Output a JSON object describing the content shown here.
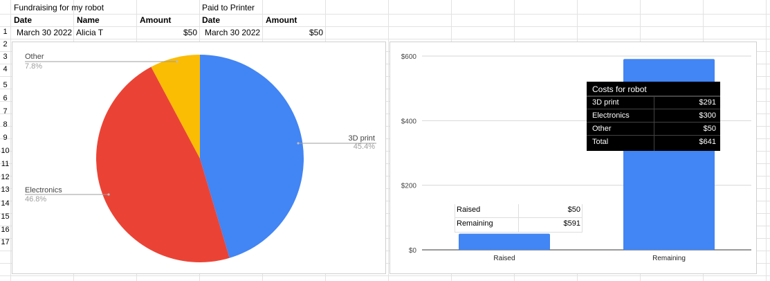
{
  "sheet": {
    "title_left": "Fundraising for my robot",
    "title_right": "Paid to Printer",
    "headers": [
      "Date",
      "Name",
      "Amount",
      "Date",
      "Amount"
    ],
    "row1": [
      "March 30 2022",
      "Alicia T",
      "$50",
      "March 30 2022",
      "$50"
    ],
    "row_numbers": [
      "1",
      "2",
      "3",
      "4",
      "5",
      "6",
      "7",
      "8",
      "9",
      "10",
      "11",
      "12",
      "13",
      "14",
      "15",
      "16",
      "17"
    ]
  },
  "pie": {
    "slices": [
      {
        "label": "3D print",
        "pct_label": "45.4%",
        "value": 45.4,
        "color": "#4285f4"
      },
      {
        "label": "Electronics",
        "pct_label": "46.8%",
        "value": 46.8,
        "color": "#ea4335"
      },
      {
        "label": "Other",
        "pct_label": "7.8%",
        "value": 7.8,
        "color": "#fbbc04"
      }
    ]
  },
  "chart_data": {
    "type": "bar",
    "categories": [
      "Raised",
      "Remaining"
    ],
    "values": [
      50,
      591
    ],
    "ylim": [
      0,
      600
    ],
    "yticks": [
      "$0",
      "$200",
      "$400",
      "$600"
    ],
    "grid": true,
    "color": "#4285f4"
  },
  "costs_table": {
    "title": "Costs for robot",
    "rows": [
      {
        "item": "3D print",
        "amount": "$291"
      },
      {
        "item": "Electronics",
        "amount": "$300"
      },
      {
        "item": "Other",
        "amount": "$50"
      },
      {
        "item": "Total",
        "amount": "$641"
      }
    ]
  },
  "raised_table": {
    "rows": [
      {
        "item": "Raised",
        "amount": "$50"
      },
      {
        "item": "Remaining",
        "amount": "$591"
      }
    ]
  }
}
